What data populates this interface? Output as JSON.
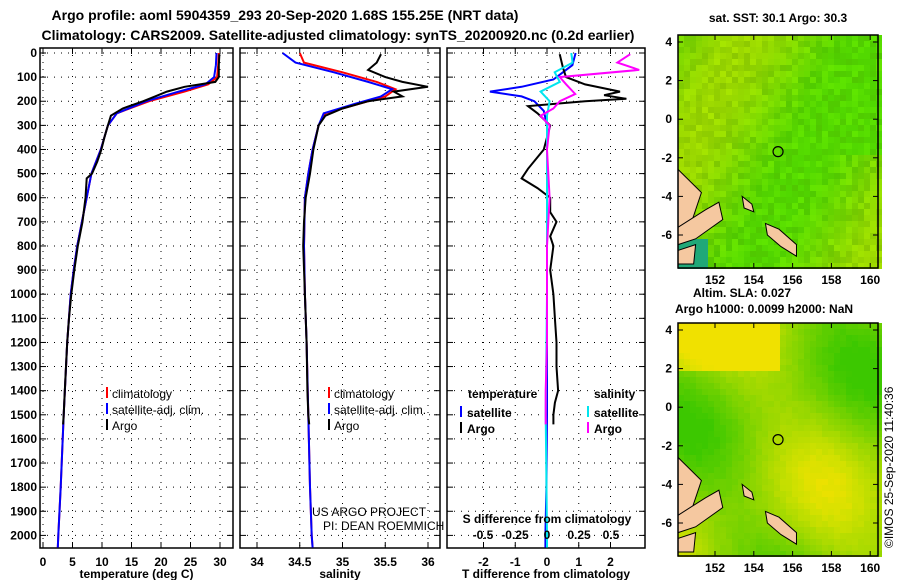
{
  "title_line1": "Argo profile: aoml 5904359_293 20-Sep-2020 1.68S 155.25E (NRT data)",
  "title_line2": "Climatology: CARS2009. Satellite-adjusted climatology: synTS_20200920.nc (0.2d earlier)",
  "colors": {
    "climatology": "#ff0000",
    "satellite": "#0000ff",
    "argo": "#000000",
    "sal_satellite": "#00e5ee",
    "sal_argo": "#ff00ff",
    "land": "#f5c8a0"
  },
  "credit": [
    "US ARGO PROJECT",
    "PI: DEAN ROEMMICH"
  ],
  "stamp": "©IMOS 25-Sep-2020 11:40:36",
  "chart_data": [
    {
      "type": "line",
      "title": "",
      "xlabel": "temperature (deg C)",
      "ylabel": "depth",
      "xlim": [
        -2,
        31
      ],
      "ylim": [
        2050,
        0
      ],
      "xticks": [
        0,
        5,
        10,
        15,
        20,
        25,
        30
      ],
      "yticks": [
        0,
        100,
        200,
        300,
        400,
        500,
        600,
        700,
        800,
        900,
        1000,
        1100,
        1200,
        1300,
        1400,
        1500,
        1600,
        1700,
        1800,
        1900,
        2000
      ],
      "legend": [
        "climatology",
        "satellite-adj. clim.",
        "Argo"
      ],
      "series": [
        {
          "name": "climatology",
          "color": "#ff0000",
          "depth": [
            0,
            50,
            100,
            130,
            160,
            200,
            250,
            300,
            400,
            500,
            600,
            700,
            800,
            900,
            1000,
            1200,
            1500,
            1800,
            2000,
            2050
          ],
          "values": [
            29.8,
            29.7,
            29.5,
            28,
            24,
            18,
            12.5,
            11,
            9.8,
            8.2,
            7.4,
            6.6,
            5.8,
            5.2,
            4.7,
            4.1,
            3.5,
            3,
            2.6,
            2.5
          ]
        },
        {
          "name": "satellite-adj. clim.",
          "color": "#0000ff",
          "depth": [
            0,
            50,
            100,
            130,
            160,
            200,
            250,
            300,
            400,
            500,
            600,
            700,
            800,
            900,
            1000,
            1200,
            1500,
            1800,
            2000,
            2050
          ],
          "values": [
            29.4,
            29.3,
            29,
            27.5,
            23,
            17.5,
            12.5,
            11,
            9.8,
            8.2,
            7.4,
            6.6,
            5.8,
            5.2,
            4.7,
            4.1,
            3.5,
            3,
            2.6,
            2.5
          ]
        },
        {
          "name": "Argo",
          "color": "#000000",
          "depth": [
            5,
            50,
            100,
            120,
            140,
            160,
            180,
            200,
            230,
            260,
            300,
            350,
            400,
            450,
            500,
            520,
            560,
            600,
            700,
            800,
            900,
            1000,
            1100,
            1200,
            1300,
            1400,
            1500,
            1540
          ],
          "values": [
            29.9,
            29.8,
            29.8,
            29.2,
            24,
            21,
            19,
            17,
            13.5,
            11.5,
            11,
            10.4,
            9.9,
            9.2,
            8.3,
            7.4,
            7.3,
            7.2,
            6.7,
            5.9,
            5.3,
            4.8,
            4.4,
            4.1,
            3.9,
            3.7,
            3.5,
            3.4
          ]
        }
      ]
    },
    {
      "type": "line",
      "title": "",
      "xlabel": "salinity",
      "ylabel": "depth",
      "xlim": [
        33.8,
        36.2
      ],
      "ylim": [
        2050,
        0
      ],
      "xticks": [
        34,
        34.5,
        35,
        35.5,
        36
      ],
      "legend": [
        "climatology",
        "satellite-adj. clim.",
        "Argo"
      ],
      "series": [
        {
          "name": "climatology",
          "color": "#ff0000",
          "depth": [
            0,
            40,
            80,
            120,
            150,
            180,
            210,
            250,
            300,
            400,
            500,
            600,
            800,
            1000,
            1200,
            1500,
            1800,
            2000,
            2050
          ],
          "values": [
            34.5,
            34.55,
            35.0,
            35.4,
            35.62,
            35.5,
            35.2,
            34.8,
            34.72,
            34.65,
            34.6,
            34.56,
            34.55,
            34.56,
            34.58,
            34.6,
            34.62,
            34.64,
            34.65
          ]
        },
        {
          "name": "satellite-adj. clim.",
          "color": "#0000ff",
          "depth": [
            0,
            40,
            80,
            120,
            150,
            180,
            210,
            250,
            300,
            400,
            500,
            600,
            800,
            1000,
            1200,
            1500,
            1800,
            2000,
            2050
          ],
          "values": [
            34.3,
            34.45,
            34.9,
            35.3,
            35.58,
            35.45,
            35.15,
            34.78,
            34.72,
            34.65,
            34.6,
            34.56,
            34.55,
            34.56,
            34.58,
            34.6,
            34.62,
            34.64,
            34.65
          ]
        },
        {
          "name": "Argo",
          "color": "#000000",
          "depth": [
            5,
            40,
            70,
            100,
            120,
            140,
            160,
            180,
            200,
            230,
            260,
            300,
            400,
            500,
            600,
            700,
            800,
            1000,
            1200,
            1400,
            1500,
            1540
          ],
          "values": [
            35.45,
            35.4,
            35.3,
            35.5,
            35.7,
            36.0,
            35.6,
            35.7,
            35.3,
            35.0,
            34.8,
            34.72,
            34.66,
            34.62,
            34.57,
            34.55,
            34.54,
            34.56,
            34.58,
            34.59,
            34.6,
            34.61
          ]
        }
      ]
    },
    {
      "type": "line",
      "title": "",
      "xlabel": "T difference from climatology",
      "secondary_xlabel": "S difference from climatology",
      "ylabel": "depth",
      "xlim": [
        -3.1,
        3
      ],
      "ylim": [
        2050,
        0
      ],
      "xticks": [
        -2,
        -1,
        0,
        1,
        2
      ],
      "secondary_xticks": [
        -0.5,
        -0.25,
        0,
        0.25,
        0.5
      ],
      "legend_temperature": {
        "heading": "temperature",
        "items": [
          "satellite",
          "Argo"
        ]
      },
      "legend_salinity": {
        "heading": "salinity",
        "items": [
          "satellite",
          "Argo"
        ]
      },
      "series": [
        {
          "name": "temperature satellite",
          "axis": "T",
          "color": "#0000ff",
          "depth": [
            0,
            50,
            80,
            110,
            140,
            160,
            180,
            200,
            240,
            300,
            400,
            600,
            1000,
            1500,
            1800,
            2000,
            2050
          ],
          "values": [
            0.9,
            0.8,
            0.5,
            0.2,
            -0.8,
            -1.8,
            -0.8,
            -0.4,
            -0.1,
            0,
            0,
            0,
            0,
            0,
            -0.02,
            -0.05,
            -0.05
          ]
        },
        {
          "name": "temperature Argo",
          "axis": "T",
          "color": "#000000",
          "depth": [
            5,
            60,
            100,
            130,
            160,
            175,
            190,
            200,
            220,
            250,
            300,
            400,
            480,
            520,
            560,
            600,
            660,
            700,
            760,
            800,
            900,
            1000,
            1100,
            1200,
            1300,
            1400,
            1450,
            1500,
            1540
          ],
          "values": [
            0.4,
            0.5,
            0.6,
            1.2,
            2.3,
            1.8,
            2.5,
            1.2,
            -0.6,
            -0.3,
            0.1,
            -0.1,
            -0.6,
            -0.8,
            -0.3,
            0.1,
            0.1,
            0.3,
            0.1,
            0.2,
            0.1,
            0.2,
            0.25,
            0.3,
            0.3,
            0.35,
            0.25,
            0.2,
            0.2
          ]
        },
        {
          "name": "salinity satellite",
          "axis": "S",
          "color": "#00e5ee",
          "depth": [
            0,
            40,
            80,
            120,
            160,
            200,
            260,
            300,
            400,
            600,
            1000,
            1500,
            2000,
            2050
          ],
          "values": [
            0.19,
            0.2,
            0.06,
            0.1,
            -0.05,
            0.02,
            0,
            0,
            0,
            0,
            0,
            -0.01,
            0,
            0
          ]
        },
        {
          "name": "salinity Argo",
          "axis": "S",
          "color": "#ff00ff",
          "depth": [
            5,
            40,
            70,
            100,
            130,
            170,
            200,
            230,
            260,
            300,
            400,
            600,
            800,
            1000,
            1200,
            1400,
            1540
          ],
          "values": [
            0.65,
            0.55,
            0.72,
            0.1,
            0.15,
            0.22,
            0.1,
            0.05,
            -0.05,
            0.02,
            0,
            0.02,
            0,
            0,
            0,
            -0.01,
            -0.01
          ]
        }
      ]
    },
    {
      "type": "heatmap",
      "title": "sat. SST: 30.1 Argo: 30.3",
      "xlim": [
        150,
        160.5
      ],
      "ylim": [
        -7.5,
        4.5
      ],
      "xticks": [
        152,
        154,
        156,
        158,
        160
      ],
      "yticks": [
        4,
        2,
        0,
        -2,
        -4,
        -6
      ],
      "marker": {
        "lon": 155.25,
        "lat": -1.68
      }
    },
    {
      "type": "heatmap",
      "title": "Altim. SLA: 0.027",
      "subtitle": "Argo h1000: 0.0099 h2000: NaN",
      "xlim": [
        150,
        160.5
      ],
      "ylim": [
        -7.5,
        4.5
      ],
      "xticks": [
        152,
        154,
        156,
        158,
        160
      ],
      "yticks": [
        4,
        2,
        0,
        -2,
        -4,
        -6
      ],
      "marker": {
        "lon": 155.25,
        "lat": -1.68
      }
    }
  ]
}
